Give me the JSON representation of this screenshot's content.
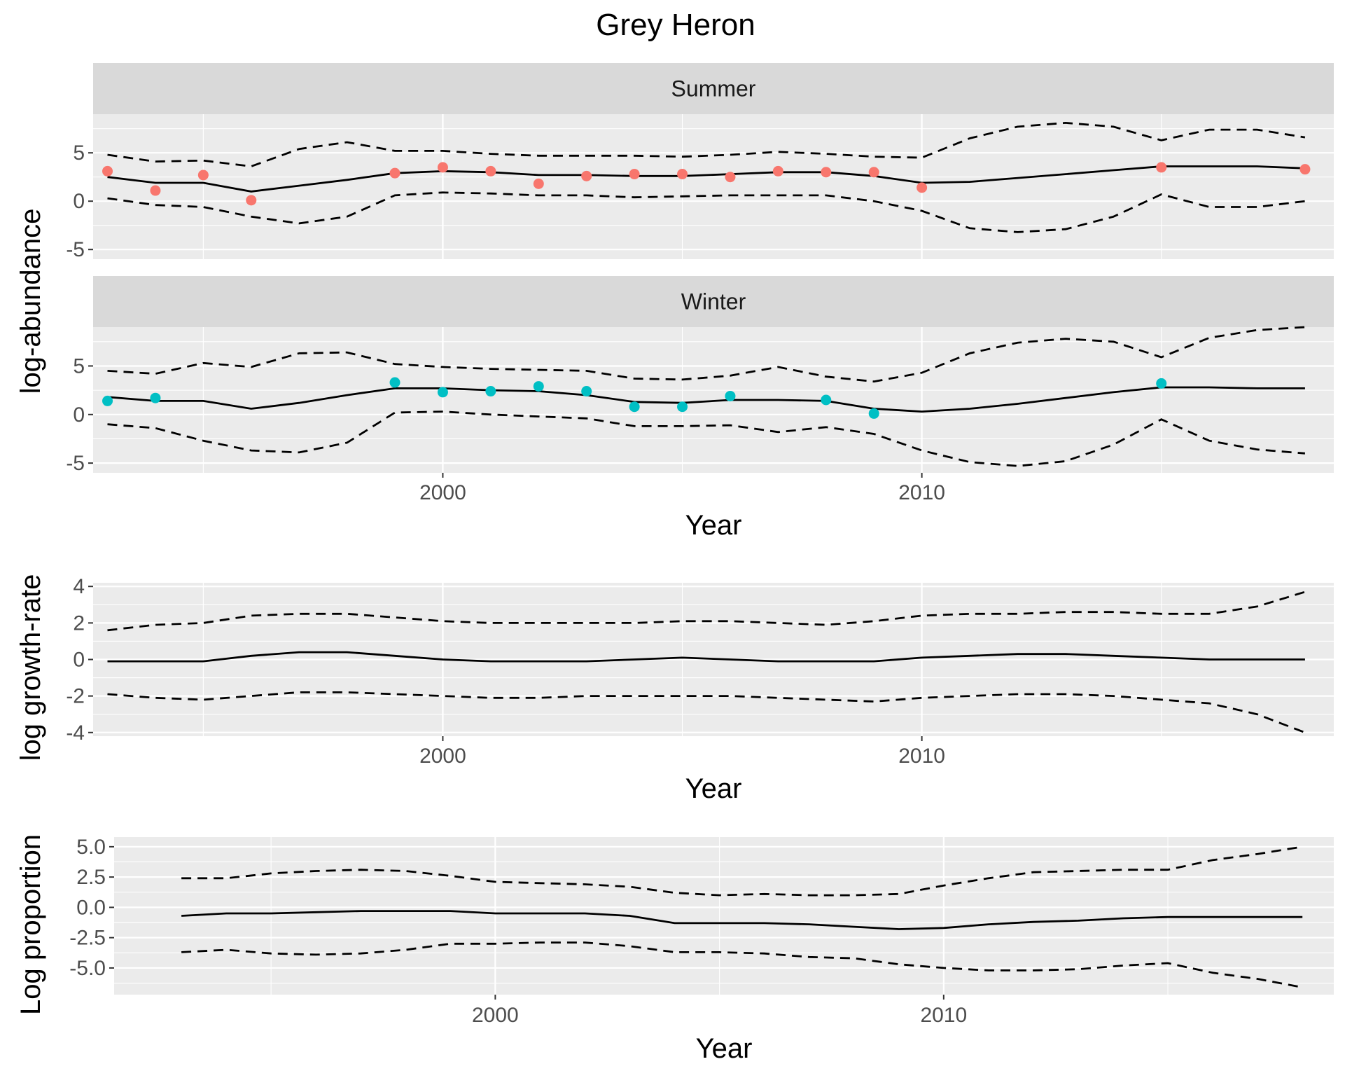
{
  "title": "Grey Heron",
  "colors": {
    "summer_points": "#F8766D",
    "winter_points": "#00BFC4",
    "panel_background": "#EBEBEB",
    "strip_background": "#D9D9D9",
    "line": "#000000"
  },
  "chart_data": [
    {
      "type": "line",
      "facets": [
        "Summer",
        "Winter"
      ],
      "ylabel": "log-abundance",
      "xlabel": "Year",
      "xlim": [
        1992.7,
        2018.6
      ],
      "ylim": [
        -6,
        9
      ],
      "x_ticks": [
        2000,
        2010
      ],
      "y_ticks": [
        -5,
        0,
        5
      ],
      "y_tick_labels": [
        "-5",
        "0",
        "5"
      ],
      "grid": true,
      "legend": "none",
      "panels": [
        {
          "strip": "Summer",
          "x": [
            1993,
            1994,
            1995,
            1996,
            1997,
            1998,
            1999,
            2000,
            2001,
            2002,
            2003,
            2004,
            2005,
            2006,
            2007,
            2008,
            2009,
            2010,
            2011,
            2012,
            2013,
            2014,
            2015,
            2016,
            2017,
            2018
          ],
          "mean": [
            2.5,
            1.9,
            1.9,
            1.0,
            1.6,
            2.2,
            2.9,
            3.1,
            3.0,
            2.7,
            2.7,
            2.6,
            2.6,
            2.8,
            3.0,
            3.0,
            2.6,
            1.9,
            2.0,
            2.4,
            2.8,
            3.2,
            3.6,
            3.6,
            3.6,
            3.4
          ],
          "upper": [
            4.8,
            4.1,
            4.2,
            3.6,
            5.4,
            6.1,
            5.2,
            5.2,
            4.9,
            4.7,
            4.7,
            4.7,
            4.6,
            4.8,
            5.1,
            4.9,
            4.6,
            4.5,
            6.5,
            7.7,
            8.1,
            7.7,
            6.3,
            7.4,
            7.4,
            6.6
          ],
          "lower": [
            0.3,
            -0.4,
            -0.6,
            -1.6,
            -2.3,
            -1.6,
            0.6,
            0.9,
            0.8,
            0.6,
            0.6,
            0.4,
            0.5,
            0.6,
            0.6,
            0.6,
            0.0,
            -1.0,
            -2.8,
            -3.2,
            -2.9,
            -1.6,
            0.7,
            -0.6,
            -0.6,
            0.0
          ],
          "points": {
            "x": [
              1993,
              1994,
              1995,
              1996,
              1999,
              2000,
              2001,
              2002,
              2003,
              2004,
              2005,
              2006,
              2007,
              2008,
              2009,
              2010,
              2015,
              2018
            ],
            "y": [
              3.1,
              1.1,
              2.7,
              0.1,
              2.9,
              3.5,
              3.1,
              1.8,
              2.6,
              2.8,
              2.8,
              2.5,
              3.1,
              3.0,
              3.0,
              1.4,
              3.5,
              3.3
            ]
          }
        },
        {
          "strip": "Winter",
          "x": [
            1993,
            1994,
            1995,
            1996,
            1997,
            1998,
            1999,
            2000,
            2001,
            2002,
            2003,
            2004,
            2005,
            2006,
            2007,
            2008,
            2009,
            2010,
            2011,
            2012,
            2013,
            2014,
            2015,
            2016,
            2017,
            2018
          ],
          "mean": [
            1.8,
            1.4,
            1.4,
            0.6,
            1.2,
            2.0,
            2.7,
            2.7,
            2.5,
            2.4,
            2.0,
            1.3,
            1.2,
            1.5,
            1.5,
            1.4,
            0.6,
            0.3,
            0.6,
            1.1,
            1.7,
            2.3,
            2.8,
            2.8,
            2.7,
            2.7
          ],
          "upper": [
            4.5,
            4.2,
            5.3,
            4.9,
            6.3,
            6.4,
            5.2,
            4.9,
            4.7,
            4.6,
            4.5,
            3.7,
            3.6,
            4.0,
            4.9,
            3.9,
            3.4,
            4.3,
            6.3,
            7.4,
            7.8,
            7.5,
            5.9,
            7.9,
            8.7,
            9.0
          ],
          "lower": [
            -1.0,
            -1.4,
            -2.7,
            -3.7,
            -3.9,
            -2.9,
            0.2,
            0.3,
            0.0,
            -0.2,
            -0.4,
            -1.2,
            -1.2,
            -1.1,
            -1.8,
            -1.3,
            -2.0,
            -3.7,
            -4.9,
            -5.3,
            -4.8,
            -3.1,
            -0.5,
            -2.7,
            -3.6,
            -4.0
          ],
          "points": {
            "x": [
              1993,
              1994,
              1999,
              2000,
              2001,
              2002,
              2003,
              2004,
              2005,
              2006,
              2008,
              2009,
              2015
            ],
            "y": [
              1.4,
              1.7,
              3.3,
              2.3,
              2.4,
              2.9,
              2.4,
              0.8,
              0.8,
              1.9,
              1.5,
              0.1,
              3.2
            ]
          }
        }
      ]
    },
    {
      "type": "line",
      "ylabel": "log growth-rate",
      "xlabel": "Year",
      "xlim": [
        1992.7,
        2018.6
      ],
      "ylim": [
        -4.2,
        4.2
      ],
      "x_ticks": [
        2000,
        2010
      ],
      "y_ticks": [
        -4,
        -2,
        0,
        2,
        4
      ],
      "y_tick_labels": [
        "-4",
        "-2",
        "0",
        "2",
        "4"
      ],
      "grid": true,
      "x": [
        1993,
        1994,
        1995,
        1996,
        1997,
        1998,
        1999,
        2000,
        2001,
        2002,
        2003,
        2004,
        2005,
        2006,
        2007,
        2008,
        2009,
        2010,
        2011,
        2012,
        2013,
        2014,
        2015,
        2016,
        2017,
        2018
      ],
      "mean": [
        -0.1,
        -0.1,
        -0.1,
        0.2,
        0.4,
        0.4,
        0.2,
        0.0,
        -0.1,
        -0.1,
        -0.1,
        0.0,
        0.1,
        0.0,
        -0.1,
        -0.1,
        -0.1,
        0.1,
        0.2,
        0.3,
        0.3,
        0.2,
        0.1,
        0.0,
        0.0,
        0.0
      ],
      "upper": [
        1.6,
        1.9,
        2.0,
        2.4,
        2.5,
        2.5,
        2.3,
        2.1,
        2.0,
        2.0,
        2.0,
        2.0,
        2.1,
        2.1,
        2.0,
        1.9,
        2.1,
        2.4,
        2.5,
        2.5,
        2.6,
        2.6,
        2.5,
        2.5,
        2.9,
        3.7
      ],
      "lower": [
        -1.9,
        -2.1,
        -2.2,
        -2.0,
        -1.8,
        -1.8,
        -1.9,
        -2.0,
        -2.1,
        -2.1,
        -2.0,
        -2.0,
        -2.0,
        -2.0,
        -2.1,
        -2.2,
        -2.3,
        -2.1,
        -2.0,
        -1.9,
        -1.9,
        -2.0,
        -2.2,
        -2.4,
        -3.0,
        -4.0
      ]
    },
    {
      "type": "line",
      "ylabel": "Log proportion",
      "xlabel": "Year",
      "xlim": [
        1991.5,
        2018.7
      ],
      "ylim": [
        -7.2,
        5.8
      ],
      "x_ticks": [
        2000,
        2010
      ],
      "y_ticks": [
        -5,
        -2.5,
        0,
        2.5,
        5
      ],
      "y_tick_labels": [
        "-5.0",
        "-2.5",
        "0.0",
        "2.5",
        "5.0"
      ],
      "grid": true,
      "x": [
        1993,
        1994,
        1995,
        1996,
        1997,
        1998,
        1999,
        2000,
        2001,
        2002,
        2003,
        2004,
        2005,
        2006,
        2007,
        2008,
        2009,
        2010,
        2011,
        2012,
        2013,
        2014,
        2015,
        2016,
        2017,
        2018
      ],
      "mean": [
        -0.7,
        -0.5,
        -0.5,
        -0.4,
        -0.3,
        -0.3,
        -0.3,
        -0.5,
        -0.5,
        -0.5,
        -0.7,
        -1.3,
        -1.3,
        -1.3,
        -1.4,
        -1.6,
        -1.8,
        -1.7,
        -1.4,
        -1.2,
        -1.1,
        -0.9,
        -0.8,
        -0.8,
        -0.8,
        -0.8
      ],
      "upper": [
        2.4,
        2.4,
        2.8,
        3.0,
        3.1,
        3.0,
        2.6,
        2.1,
        2.0,
        1.9,
        1.7,
        1.2,
        1.0,
        1.1,
        1.0,
        1.0,
        1.1,
        1.8,
        2.4,
        2.9,
        3.0,
        3.1,
        3.1,
        3.9,
        4.4,
        5.0
      ],
      "lower": [
        -3.7,
        -3.5,
        -3.8,
        -3.9,
        -3.8,
        -3.5,
        -3.0,
        -3.0,
        -2.9,
        -2.9,
        -3.2,
        -3.7,
        -3.7,
        -3.8,
        -4.1,
        -4.2,
        -4.7,
        -5.0,
        -5.2,
        -5.2,
        -5.1,
        -4.8,
        -4.6,
        -5.4,
        -5.9,
        -6.6
      ]
    }
  ]
}
